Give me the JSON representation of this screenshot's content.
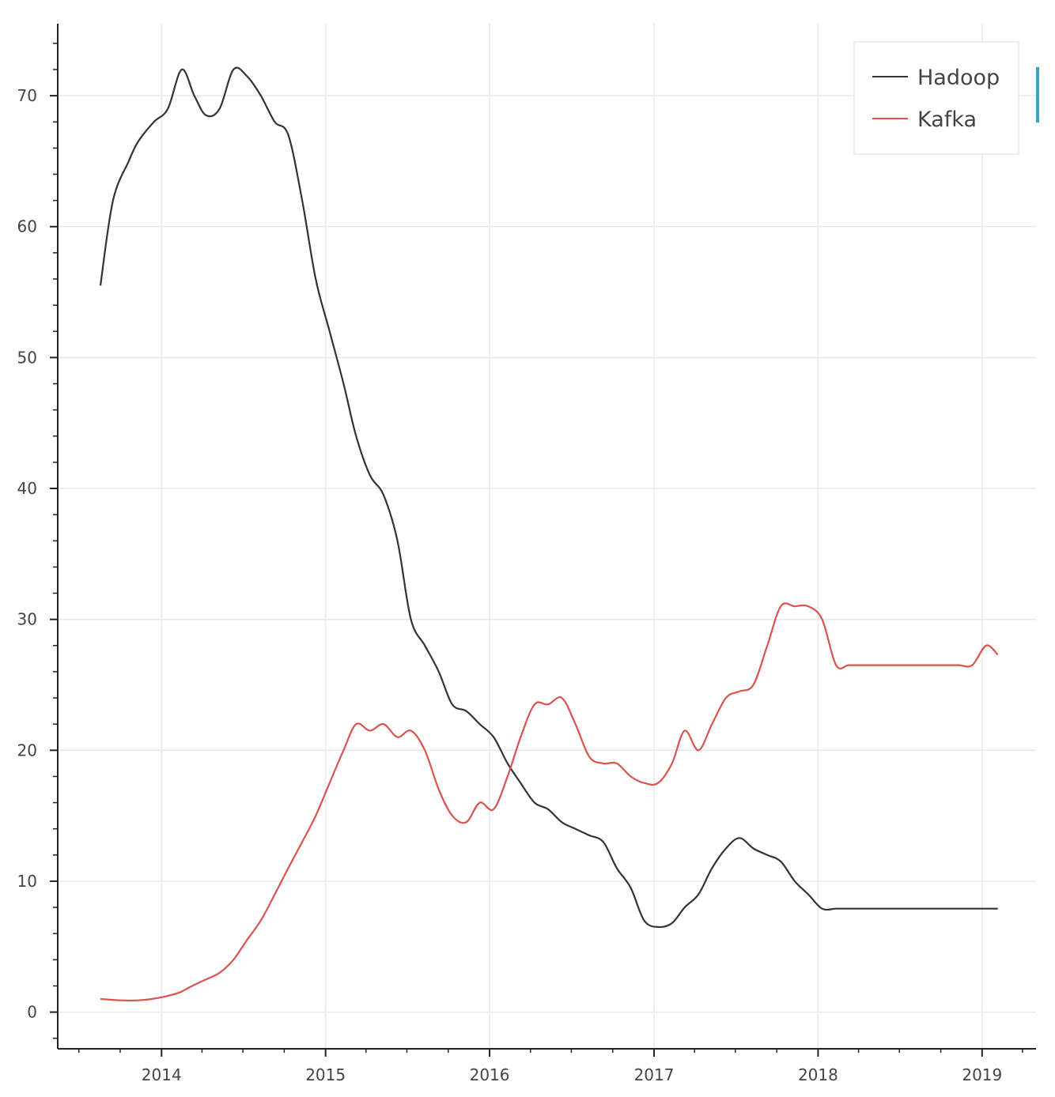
{
  "chart_data": {
    "type": "line",
    "title": "",
    "xlabel": "",
    "ylabel": "",
    "xlim": [
      "2013-05-15",
      "2019-05-01"
    ],
    "ylim": [
      -2.5,
      75.5
    ],
    "x_ticks": [
      "2014",
      "2015",
      "2016",
      "2017",
      "2018",
      "2019"
    ],
    "y_ticks": [
      0,
      10,
      20,
      30,
      40,
      50,
      60,
      70
    ],
    "grid": true,
    "legend": "top-right",
    "series": [
      {
        "name": "Hadoop",
        "color": "#333333",
        "x": [
          "2013-08-18",
          "2013-09-15",
          "2013-10-20",
          "2013-11-10",
          "2013-12-15",
          "2014-01-15",
          "2014-02-15",
          "2014-03-15",
          "2014-04-10",
          "2014-05-10",
          "2014-06-10",
          "2014-07-10",
          "2014-08-10",
          "2014-09-10",
          "2014-10-10",
          "2014-11-10",
          "2014-12-10",
          "2015-01-10",
          "2015-02-10",
          "2015-03-10",
          "2015-04-10",
          "2015-05-10",
          "2015-06-10",
          "2015-07-10",
          "2015-08-10",
          "2015-09-10",
          "2015-10-10",
          "2015-11-10",
          "2015-12-10",
          "2016-01-10",
          "2016-02-10",
          "2016-03-10",
          "2016-04-10",
          "2016-05-10",
          "2016-06-10",
          "2016-07-10",
          "2016-08-10",
          "2016-09-10",
          "2016-10-10",
          "2016-11-10",
          "2016-12-10",
          "2017-01-10",
          "2017-02-10",
          "2017-03-10",
          "2017-04-10",
          "2017-05-10",
          "2017-06-10",
          "2017-07-10",
          "2017-08-10",
          "2017-09-10",
          "2017-10-10",
          "2017-11-10",
          "2017-12-10",
          "2018-01-10",
          "2018-02-10",
          "2018-03-10",
          "2018-04-10",
          "2018-05-10",
          "2018-06-10",
          "2018-07-10",
          "2018-08-10",
          "2018-09-10",
          "2018-10-10",
          "2018-11-10",
          "2018-12-10",
          "2019-01-10",
          "2019-02-05"
        ],
        "values": [
          55.5,
          62,
          65,
          66.5,
          68,
          69,
          72,
          70,
          68.5,
          69,
          72,
          71.5,
          70,
          68,
          67,
          62,
          56,
          52,
          48,
          44,
          41,
          39.5,
          36,
          30,
          28,
          26,
          23.5,
          23,
          22,
          21,
          19,
          17.5,
          16,
          15.5,
          14.5,
          14,
          13.5,
          13,
          11,
          9.5,
          7,
          6.5,
          6.8,
          8,
          9,
          11,
          12.5,
          13.3,
          12.5,
          12,
          11.5,
          10,
          9,
          7.9,
          7.9,
          7.9,
          7.9,
          7.9,
          7.9,
          7.9,
          7.9,
          7.9,
          7.9,
          7.9,
          7.9,
          7.9,
          7.9
        ]
      },
      {
        "name": "Kafka",
        "color": "#d9534f",
        "x": [
          "2013-08-18",
          "2013-10-01",
          "2013-11-10",
          "2013-12-10",
          "2014-01-10",
          "2014-02-10",
          "2014-03-10",
          "2014-04-10",
          "2014-05-10",
          "2014-06-10",
          "2014-07-10",
          "2014-08-10",
          "2014-09-10",
          "2014-10-10",
          "2014-11-10",
          "2014-12-10",
          "2015-01-10",
          "2015-02-10",
          "2015-03-10",
          "2015-04-10",
          "2015-05-10",
          "2015-06-10",
          "2015-07-10",
          "2015-08-10",
          "2015-09-10",
          "2015-10-10",
          "2015-11-10",
          "2015-12-10",
          "2016-01-10",
          "2016-02-10",
          "2016-03-10",
          "2016-04-10",
          "2016-05-10",
          "2016-06-10",
          "2016-07-10",
          "2016-08-10",
          "2016-09-10",
          "2016-10-10",
          "2016-11-10",
          "2016-12-10",
          "2017-01-10",
          "2017-02-10",
          "2017-03-10",
          "2017-04-10",
          "2017-05-10",
          "2017-06-10",
          "2017-07-10",
          "2017-08-10",
          "2017-09-10",
          "2017-10-10",
          "2017-11-10",
          "2017-12-10",
          "2018-01-10",
          "2018-02-10",
          "2018-03-10",
          "2018-04-10",
          "2018-05-10",
          "2018-06-10",
          "2018-07-10",
          "2018-08-10",
          "2018-09-10",
          "2018-10-10",
          "2018-11-10",
          "2018-12-10",
          "2019-01-10",
          "2019-02-05"
        ],
        "values": [
          1,
          0.9,
          0.9,
          1,
          1.2,
          1.5,
          2,
          2.5,
          3,
          4,
          5.5,
          7,
          9,
          11,
          13,
          15,
          17.5,
          20,
          22,
          21.5,
          22,
          21,
          21.5,
          20,
          17,
          15,
          14.5,
          16,
          15.5,
          18,
          21,
          23.5,
          23.5,
          24,
          22,
          19.5,
          19,
          19,
          18,
          17.5,
          17.5,
          19,
          21.5,
          20,
          22,
          24,
          24.5,
          25,
          28,
          31,
          31,
          31,
          30,
          26.5,
          26.5,
          26.5,
          26.5,
          26.5,
          26.5,
          26.5,
          26.5,
          26.5,
          26.5,
          26.5,
          28,
          27.3
        ]
      }
    ]
  }
}
